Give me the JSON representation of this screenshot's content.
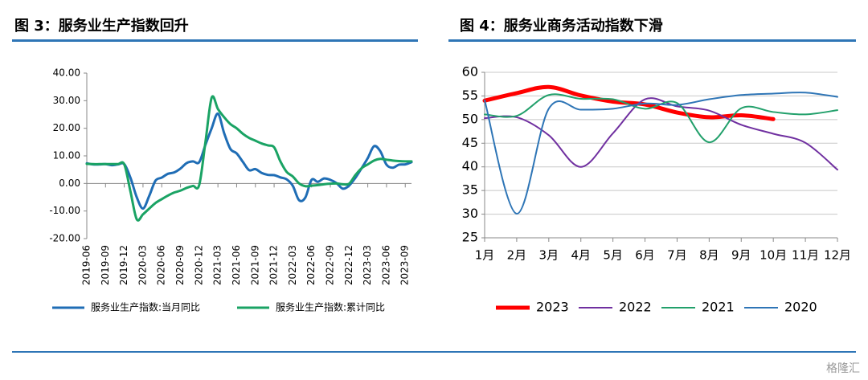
{
  "chart_data": [
    {
      "type": "line",
      "title": "图 3：服务业生产指数回升",
      "categories": [
        "2019-06",
        null,
        null,
        "2019-09",
        null,
        null,
        "2019-12",
        null,
        null,
        "2020-03",
        null,
        null,
        "2020-06",
        null,
        null,
        "2020-09",
        null,
        null,
        "2020-12",
        null,
        null,
        "2021-03",
        null,
        null,
        "2021-06",
        null,
        null,
        "2021-09",
        null,
        null,
        "2021-12",
        null,
        null,
        "2022-03",
        null,
        null,
        "2022-06",
        null,
        null,
        "2022-09",
        null,
        null,
        "2022-12",
        null,
        null,
        "2023-03",
        null,
        null,
        "2023-06",
        null,
        null,
        "2023-09",
        null
      ],
      "series": [
        {
          "name": "服务业生产指数:当月同比",
          "color": "#1f6db5",
          "line_width": 3,
          "values": [
            7.3,
            6.9,
            6.9,
            7.0,
            6.6,
            6.9,
            7.0,
            2,
            -5,
            -9.1,
            -4.5,
            1.0,
            2.1,
            3.5,
            4.0,
            5.4,
            7.4,
            8.0,
            7.7,
            14,
            20,
            25.3,
            18.2,
            12.5,
            10.9,
            7.8,
            4.8,
            5.2,
            3.8,
            3.1,
            3.0,
            2.2,
            1.5,
            -0.9,
            -6.1,
            -5.1,
            1.3,
            0.6,
            1.8,
            1.3,
            0.1,
            -1.9,
            -0.8,
            2,
            5.5,
            9.2,
            13.5,
            11.7,
            6.8,
            5.7,
            6.8,
            6.9,
            7.7
          ]
        },
        {
          "name": "服务业生产指数:累计同比",
          "color": "#1aa364",
          "line_width": 3,
          "values": [
            7.1,
            7.0,
            7.0,
            7.0,
            7.0,
            7.0,
            6.9,
            -3,
            -13,
            -11.2,
            -9.1,
            -7.1,
            -5.7,
            -4.4,
            -3.3,
            -2.6,
            -1.6,
            -0.9,
            -0.6,
            15,
            31.1,
            27.0,
            24.0,
            21.5,
            20.0,
            18.0,
            16.5,
            15.5,
            14.5,
            13.8,
            13.1,
            8,
            4.2,
            2.5,
            0.0,
            -1.0,
            -0.8,
            -0.6,
            -0.3,
            -0.1,
            0,
            -0.3,
            -0.1,
            3,
            5.5,
            6.9,
            8.3,
            8.9,
            8.6,
            8.3,
            8.1,
            8.0,
            8.0
          ]
        }
      ],
      "ylim": [
        -20,
        40
      ],
      "yticks": [
        {
          "value": -20,
          "label": "-20.00"
        },
        {
          "value": -10,
          "label": "-10.00"
        },
        {
          "value": 0,
          "label": "0.00"
        },
        {
          "value": 10,
          "label": "10.00"
        },
        {
          "value": 20,
          "label": "20.00"
        },
        {
          "value": 30,
          "label": "30.00"
        },
        {
          "value": 40,
          "label": "40.00"
        }
      ],
      "grid": false,
      "legend": "bottom"
    },
    {
      "type": "line",
      "title": "图 4：服务业商务活动指数下滑",
      "categories": [
        "1月",
        "2月",
        "3月",
        "4月",
        "5月",
        "6月",
        "7月",
        "8月",
        "9月",
        "10月",
        "11月",
        "12月"
      ],
      "series": [
        {
          "name": "2023",
          "color": "#ff0000",
          "line_width": 5,
          "values": [
            54.0,
            55.6,
            56.9,
            55.1,
            53.8,
            53.2,
            51.5,
            50.5,
            50.9,
            50.1,
            null,
            null
          ]
        },
        {
          "name": "2022",
          "color": "#7030a0",
          "line_width": 2,
          "values": [
            50.3,
            50.5,
            46.7,
            40.0,
            47.1,
            54.3,
            52.8,
            51.9,
            48.9,
            47.0,
            45.1,
            39.4
          ]
        },
        {
          "name": "2021",
          "color": "#22a06b",
          "line_width": 2,
          "values": [
            51.1,
            50.8,
            55.2,
            54.4,
            54.3,
            52.3,
            53.5,
            45.2,
            52.4,
            51.6,
            51.1,
            52.0
          ]
        },
        {
          "name": "2020",
          "color": "#2e75b6",
          "line_width": 2,
          "values": [
            54.1,
            30.1,
            52.3,
            52.1,
            52.3,
            53.4,
            53.1,
            54.3,
            55.2,
            55.5,
            55.7,
            54.8
          ]
        }
      ],
      "ylim": [
        25,
        60
      ],
      "yticks": [
        25,
        30,
        35,
        40,
        45,
        50,
        55,
        60
      ],
      "grid": true,
      "legend": "bottom"
    }
  ],
  "watermark": "格隆汇"
}
